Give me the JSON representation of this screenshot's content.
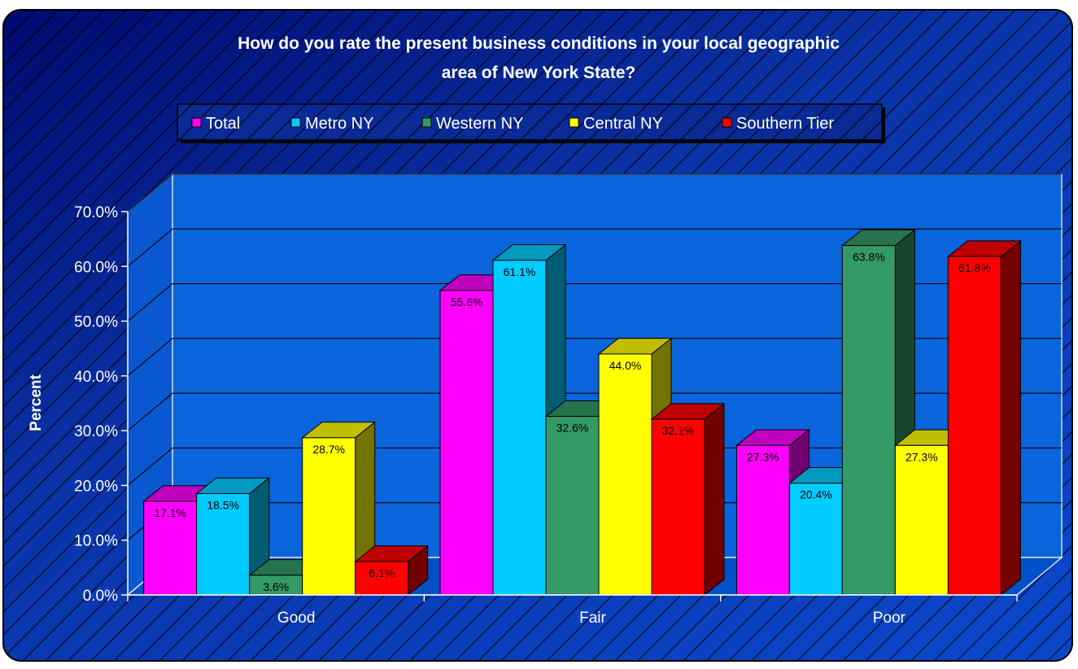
{
  "chart_data": {
    "type": "bar",
    "title_lines": [
      "How do you rate the present business conditions in your local geographic",
      "area of New York State?"
    ],
    "xlabel": "",
    "ylabel": "Percent",
    "categories": [
      "Good",
      "Fair",
      "Poor"
    ],
    "ylim": [
      0,
      70
    ],
    "yticks": [
      0,
      10,
      20,
      30,
      40,
      50,
      60,
      70
    ],
    "ytick_labels": [
      "0.0%",
      "10.0%",
      "20.0%",
      "30.0%",
      "40.0%",
      "50.0%",
      "60.0%",
      "70.0%"
    ],
    "grid": true,
    "legend_position": "top",
    "series": [
      {
        "name": "Total",
        "color": "#ff00ff",
        "values": [
          17.1,
          55.6,
          27.3
        ],
        "labels": [
          "17.1%",
          "55.6%",
          "27.3%"
        ]
      },
      {
        "name": "Metro NY",
        "color": "#00ccff",
        "values": [
          18.5,
          61.1,
          20.4
        ],
        "labels": [
          "18.5%",
          "61.1%",
          "20.4%"
        ]
      },
      {
        "name": "Western NY",
        "color": "#339966",
        "values": [
          3.6,
          32.6,
          63.8
        ],
        "labels": [
          "3.6%",
          "32.6%",
          "63.8%"
        ]
      },
      {
        "name": "Central NY",
        "color": "#ffff00",
        "values": [
          28.7,
          44.0,
          27.3
        ],
        "labels": [
          "28.7%",
          "44.0%",
          "27.3%"
        ]
      },
      {
        "name": "Southern Tier",
        "color": "#ff0000",
        "values": [
          6.1,
          32.1,
          61.8
        ],
        "labels": [
          "6.1%",
          "32.1%",
          "61.8%"
        ]
      }
    ]
  },
  "colors": {
    "background": "#0a3cb4",
    "background_dark": "#000a78",
    "plot_back": "#0a64dc",
    "plot_floor": "#0050c8",
    "axis_text": "#ffffff"
  }
}
